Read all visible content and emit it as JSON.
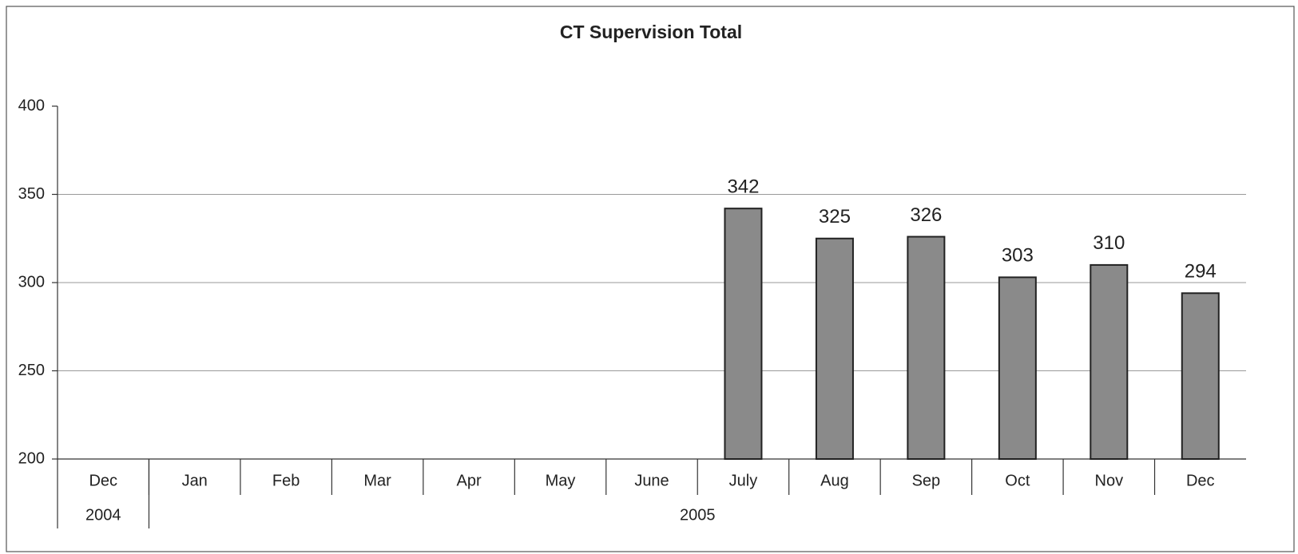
{
  "chart_data": {
    "type": "bar",
    "title": "CT Supervision Total",
    "categories": [
      "Dec",
      "Jan",
      "Feb",
      "Mar",
      "Apr",
      "May",
      "June",
      "July",
      "Aug",
      "Sep",
      "Oct",
      "Nov",
      "Dec"
    ],
    "groups": [
      {
        "label": "2004",
        "count": 1
      },
      {
        "label": "2005",
        "count": 12
      }
    ],
    "values": [
      null,
      null,
      null,
      null,
      null,
      null,
      null,
      342,
      325,
      326,
      303,
      310,
      294
    ],
    "color": "#8a8a8a",
    "ylim": [
      200,
      400
    ],
    "yticks": [
      200,
      250,
      300,
      350,
      400
    ],
    "grid": true
  }
}
